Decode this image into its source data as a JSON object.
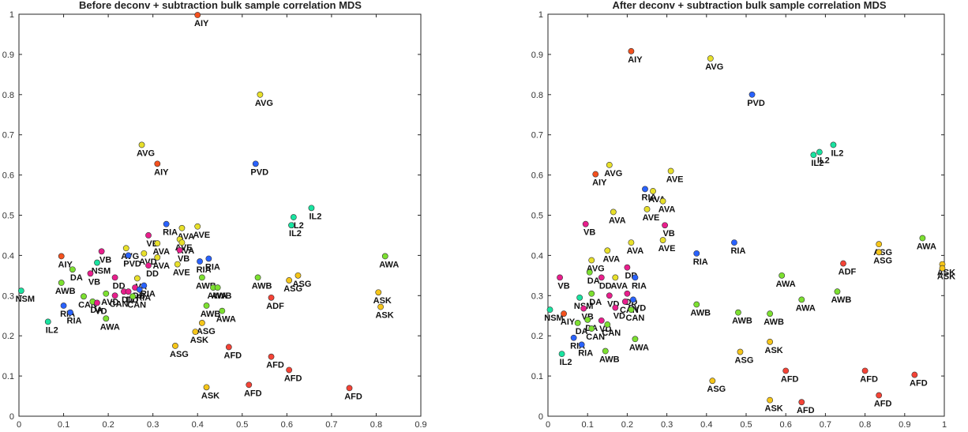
{
  "chart_data": [
    {
      "type": "scatter",
      "title": "Before deconv + subtraction bulk sample correlation MDS",
      "xlabel": "",
      "ylabel": "",
      "xlim": [
        0,
        0.9
      ],
      "ylim": [
        0,
        1
      ],
      "xticks": [
        "0",
        "0.1",
        "0.2",
        "0.3",
        "0.4",
        "0.5",
        "0.6",
        "0.7",
        "0.8",
        "0.9"
      ],
      "yticks": [
        "0",
        "0.1",
        "0.2",
        "0.3",
        "0.4",
        "0.5",
        "0.6",
        "0.7",
        "0.8",
        "0.9",
        "1"
      ],
      "grid": false,
      "points": [
        {
          "x": 0.4,
          "y": 0.998,
          "label": "AIY",
          "color": "#f4511e"
        },
        {
          "x": 0.54,
          "y": 0.8,
          "label": "AVG",
          "color": "#e8e02a"
        },
        {
          "x": 0.275,
          "y": 0.675,
          "label": "AVG",
          "color": "#e8e02a"
        },
        {
          "x": 0.31,
          "y": 0.628,
          "label": "AIY",
          "color": "#f4511e"
        },
        {
          "x": 0.53,
          "y": 0.628,
          "label": "PVD",
          "color": "#2962ff"
        },
        {
          "x": 0.655,
          "y": 0.518,
          "label": "IL2",
          "color": "#19e3a0"
        },
        {
          "x": 0.615,
          "y": 0.495,
          "label": "IL2",
          "color": "#19e3a0"
        },
        {
          "x": 0.61,
          "y": 0.475,
          "label": "IL2",
          "color": "#19e3a0"
        },
        {
          "x": 0.33,
          "y": 0.478,
          "label": "RIA",
          "color": "#2962ff"
        },
        {
          "x": 0.365,
          "y": 0.468,
          "label": "AVA",
          "color": "#e8e02a"
        },
        {
          "x": 0.4,
          "y": 0.472,
          "label": "AVE",
          "color": "#e8e02a"
        },
        {
          "x": 0.29,
          "y": 0.45,
          "label": "VB",
          "color": "#e91e8c"
        },
        {
          "x": 0.36,
          "y": 0.44,
          "label": "AVE",
          "color": "#e8e02a"
        },
        {
          "x": 0.365,
          "y": 0.432,
          "label": "AVA",
          "color": "#e8e02a"
        },
        {
          "x": 0.31,
          "y": 0.43,
          "label": "AVA",
          "color": "#e8e02a"
        },
        {
          "x": 0.36,
          "y": 0.413,
          "label": "VB",
          "color": "#e91e8c"
        },
        {
          "x": 0.24,
          "y": 0.418,
          "label": "AVG",
          "color": "#e8e02a"
        },
        {
          "x": 0.185,
          "y": 0.41,
          "label": "VB",
          "color": "#e91e8c"
        },
        {
          "x": 0.245,
          "y": 0.4,
          "label": "PVD",
          "color": "#2962ff"
        },
        {
          "x": 0.28,
          "y": 0.405,
          "label": "AVD",
          "color": "#e8e02a"
        },
        {
          "x": 0.31,
          "y": 0.395,
          "label": "AVA",
          "color": "#e8e02a"
        },
        {
          "x": 0.425,
          "y": 0.392,
          "label": "RIA",
          "color": "#2962ff"
        },
        {
          "x": 0.405,
          "y": 0.385,
          "label": "RIA",
          "color": "#2962ff"
        },
        {
          "x": 0.355,
          "y": 0.378,
          "label": "AVE",
          "color": "#e8e02a"
        },
        {
          "x": 0.29,
          "y": 0.375,
          "label": "DD",
          "color": "#e91e8c"
        },
        {
          "x": 0.095,
          "y": 0.398,
          "label": "AIY",
          "color": "#f4511e"
        },
        {
          "x": 0.175,
          "y": 0.382,
          "label": "NSM",
          "color": "#19e3a0"
        },
        {
          "x": 0.12,
          "y": 0.365,
          "label": "DA",
          "color": "#7ce030"
        },
        {
          "x": 0.16,
          "y": 0.355,
          "label": "VB",
          "color": "#e91e8c"
        },
        {
          "x": 0.215,
          "y": 0.345,
          "label": "DD",
          "color": "#e91e8c"
        },
        {
          "x": 0.265,
          "y": 0.343,
          "label": "VA",
          "color": "#e8e02a"
        },
        {
          "x": 0.095,
          "y": 0.332,
          "label": "AWB",
          "color": "#7ce030"
        },
        {
          "x": 0.005,
          "y": 0.312,
          "label": "NSM",
          "color": "#19e3a0"
        },
        {
          "x": 0.145,
          "y": 0.298,
          "label": "CAN",
          "color": "#7ce030"
        },
        {
          "x": 0.195,
          "y": 0.305,
          "label": "AVD",
          "color": "#7ce030"
        },
        {
          "x": 0.215,
          "y": 0.3,
          "label": "CAN",
          "color": "#e91e8c"
        },
        {
          "x": 0.235,
          "y": 0.31,
          "label": "DD",
          "color": "#e91e8c"
        },
        {
          "x": 0.245,
          "y": 0.31,
          "label": "DD",
          "color": "#e91e8c"
        },
        {
          "x": 0.26,
          "y": 0.32,
          "label": "DB",
          "color": "#e91e8c"
        },
        {
          "x": 0.27,
          "y": 0.315,
          "label": "RIA",
          "color": "#2962ff"
        },
        {
          "x": 0.28,
          "y": 0.325,
          "label": "RIA",
          "color": "#2962ff"
        },
        {
          "x": 0.255,
          "y": 0.298,
          "label": "CAN",
          "color": "#7ce030"
        },
        {
          "x": 0.165,
          "y": 0.285,
          "label": "DA",
          "color": "#7ce030"
        },
        {
          "x": 0.175,
          "y": 0.282,
          "label": "VD",
          "color": "#e91e8c"
        },
        {
          "x": 0.1,
          "y": 0.275,
          "label": "RIA",
          "color": "#2962ff"
        },
        {
          "x": 0.115,
          "y": 0.258,
          "label": "RIA",
          "color": "#2962ff"
        },
        {
          "x": 0.195,
          "y": 0.243,
          "label": "AWA",
          "color": "#7ce030"
        },
        {
          "x": 0.065,
          "y": 0.235,
          "label": "IL2",
          "color": "#19e3a0"
        },
        {
          "x": 0.41,
          "y": 0.345,
          "label": "AWB",
          "color": "#7ce030"
        },
        {
          "x": 0.435,
          "y": 0.32,
          "label": "AWA",
          "color": "#7ce030"
        },
        {
          "x": 0.445,
          "y": 0.32,
          "label": "AWB",
          "color": "#7ce030"
        },
        {
          "x": 0.535,
          "y": 0.345,
          "label": "AWB",
          "color": "#7ce030"
        },
        {
          "x": 0.625,
          "y": 0.35,
          "label": "ASG",
          "color": "#f5c518"
        },
        {
          "x": 0.605,
          "y": 0.338,
          "label": "ASG",
          "color": "#f5c518"
        },
        {
          "x": 0.565,
          "y": 0.295,
          "label": "ADF",
          "color": "#f44336"
        },
        {
          "x": 0.42,
          "y": 0.275,
          "label": "AWB",
          "color": "#7ce030"
        },
        {
          "x": 0.455,
          "y": 0.262,
          "label": "AWA",
          "color": "#7ce030"
        },
        {
          "x": 0.41,
          "y": 0.232,
          "label": "ASG",
          "color": "#f5c518"
        },
        {
          "x": 0.395,
          "y": 0.21,
          "label": "ASK",
          "color": "#f5c518"
        },
        {
          "x": 0.35,
          "y": 0.175,
          "label": "ASG",
          "color": "#f5c518"
        },
        {
          "x": 0.47,
          "y": 0.172,
          "label": "AFD",
          "color": "#f44336"
        },
        {
          "x": 0.565,
          "y": 0.148,
          "label": "AFD",
          "color": "#f44336"
        },
        {
          "x": 0.605,
          "y": 0.115,
          "label": "AFD",
          "color": "#f44336"
        },
        {
          "x": 0.515,
          "y": 0.078,
          "label": "AFD",
          "color": "#f44336"
        },
        {
          "x": 0.42,
          "y": 0.072,
          "label": "ASK",
          "color": "#f5c518"
        },
        {
          "x": 0.74,
          "y": 0.07,
          "label": "AFD",
          "color": "#f44336"
        },
        {
          "x": 0.82,
          "y": 0.398,
          "label": "AWA",
          "color": "#7ce030"
        },
        {
          "x": 0.805,
          "y": 0.308,
          "label": "ASK",
          "color": "#f5c518"
        },
        {
          "x": 0.81,
          "y": 0.272,
          "label": "ASK",
          "color": "#f5c518"
        }
      ]
    },
    {
      "type": "scatter",
      "title": "After deconv + subtraction bulk sample correlation MDS",
      "xlabel": "",
      "ylabel": "",
      "xlim": [
        0,
        1
      ],
      "ylim": [
        0,
        1
      ],
      "xticks": [
        "0",
        "0.1",
        "0.2",
        "0.3",
        "0.4",
        "0.5",
        "0.6",
        "0.7",
        "0.8",
        "0.9",
        "1"
      ],
      "yticks": [
        "0",
        "0.1",
        "0.2",
        "0.3",
        "0.4",
        "0.5",
        "0.6",
        "0.7",
        "0.8",
        "0.9",
        "1"
      ],
      "grid": false,
      "points": [
        {
          "x": 0.21,
          "y": 0.908,
          "label": "AIY",
          "color": "#f4511e"
        },
        {
          "x": 0.41,
          "y": 0.89,
          "label": "AVG",
          "color": "#e8e02a"
        },
        {
          "x": 0.515,
          "y": 0.8,
          "label": "PVD",
          "color": "#2962ff"
        },
        {
          "x": 0.72,
          "y": 0.675,
          "label": "IL2",
          "color": "#19e3a0"
        },
        {
          "x": 0.685,
          "y": 0.657,
          "label": "IL2",
          "color": "#19e3a0"
        },
        {
          "x": 0.67,
          "y": 0.65,
          "label": "IL2",
          "color": "#19e3a0"
        },
        {
          "x": 0.155,
          "y": 0.625,
          "label": "AVG",
          "color": "#e8e02a"
        },
        {
          "x": 0.12,
          "y": 0.602,
          "label": "AIY",
          "color": "#f4511e"
        },
        {
          "x": 0.31,
          "y": 0.61,
          "label": "AVE",
          "color": "#e8e02a"
        },
        {
          "x": 0.245,
          "y": 0.565,
          "label": "RIA",
          "color": "#2962ff"
        },
        {
          "x": 0.265,
          "y": 0.56,
          "label": "AVA",
          "color": "#e8e02a"
        },
        {
          "x": 0.29,
          "y": 0.535,
          "label": "AVA",
          "color": "#e8e02a"
        },
        {
          "x": 0.165,
          "y": 0.508,
          "label": "AVA",
          "color": "#e8e02a"
        },
        {
          "x": 0.25,
          "y": 0.515,
          "label": "AVE",
          "color": "#e8e02a"
        },
        {
          "x": 0.095,
          "y": 0.478,
          "label": "VB",
          "color": "#e91e8c"
        },
        {
          "x": 0.295,
          "y": 0.475,
          "label": "VB",
          "color": "#e91e8c"
        },
        {
          "x": 0.945,
          "y": 0.443,
          "label": "AWA",
          "color": "#7ce030"
        },
        {
          "x": 0.29,
          "y": 0.438,
          "label": "AVE",
          "color": "#e8e02a"
        },
        {
          "x": 0.21,
          "y": 0.432,
          "label": "AVA",
          "color": "#e8e02a"
        },
        {
          "x": 0.47,
          "y": 0.432,
          "label": "RIA",
          "color": "#2962ff"
        },
        {
          "x": 0.835,
          "y": 0.428,
          "label": "ASG",
          "color": "#f5c518"
        },
        {
          "x": 0.835,
          "y": 0.408,
          "label": "ASG",
          "color": "#f5c518"
        },
        {
          "x": 0.15,
          "y": 0.412,
          "label": "AVA",
          "color": "#e8e02a"
        },
        {
          "x": 0.375,
          "y": 0.405,
          "label": "RIA",
          "color": "#2962ff"
        },
        {
          "x": 0.11,
          "y": 0.388,
          "label": "AVG",
          "color": "#e8e02a"
        },
        {
          "x": 0.745,
          "y": 0.38,
          "label": "ADF",
          "color": "#f44336"
        },
        {
          "x": 0.995,
          "y": 0.378,
          "label": "ASK",
          "color": "#f5c518"
        },
        {
          "x": 0.995,
          "y": 0.368,
          "label": "ASK",
          "color": "#f5c518"
        },
        {
          "x": 0.2,
          "y": 0.37,
          "label": "DD",
          "color": "#e91e8c"
        },
        {
          "x": 0.105,
          "y": 0.358,
          "label": "DA",
          "color": "#7ce030"
        },
        {
          "x": 0.135,
          "y": 0.345,
          "label": "DD",
          "color": "#e91e8c"
        },
        {
          "x": 0.17,
          "y": 0.345,
          "label": "AVA",
          "color": "#e8e02a"
        },
        {
          "x": 0.22,
          "y": 0.345,
          "label": "RIA",
          "color": "#2962ff"
        },
        {
          "x": 0.59,
          "y": 0.35,
          "label": "AWA",
          "color": "#7ce030"
        },
        {
          "x": 0.03,
          "y": 0.345,
          "label": "VB",
          "color": "#e91e8c"
        },
        {
          "x": 0.73,
          "y": 0.31,
          "label": "AWB",
          "color": "#7ce030"
        },
        {
          "x": 0.11,
          "y": 0.305,
          "label": "DA",
          "color": "#7ce030"
        },
        {
          "x": 0.155,
          "y": 0.3,
          "label": "VD",
          "color": "#e91e8c"
        },
        {
          "x": 0.2,
          "y": 0.305,
          "label": "DD",
          "color": "#e91e8c"
        },
        {
          "x": 0.215,
          "y": 0.29,
          "label": "PVD",
          "color": "#2962ff"
        },
        {
          "x": 0.08,
          "y": 0.295,
          "label": "NSM",
          "color": "#19e3a0"
        },
        {
          "x": 0.64,
          "y": 0.29,
          "label": "AWA",
          "color": "#7ce030"
        },
        {
          "x": 0.375,
          "y": 0.278,
          "label": "AWB",
          "color": "#7ce030"
        },
        {
          "x": 0.195,
          "y": 0.285,
          "label": "CAN",
          "color": "#e91e8c"
        },
        {
          "x": 0.21,
          "y": 0.265,
          "label": "CAN",
          "color": "#7ce030"
        },
        {
          "x": 0.005,
          "y": 0.265,
          "label": "NSM",
          "color": "#19e3a0"
        },
        {
          "x": 0.04,
          "y": 0.255,
          "label": "AIY",
          "color": "#f4511e"
        },
        {
          "x": 0.09,
          "y": 0.268,
          "label": "VB",
          "color": "#e91e8c"
        },
        {
          "x": 0.17,
          "y": 0.27,
          "label": "VD",
          "color": "#e91e8c"
        },
        {
          "x": 0.48,
          "y": 0.258,
          "label": "AWB",
          "color": "#7ce030"
        },
        {
          "x": 0.56,
          "y": 0.255,
          "label": "AWB",
          "color": "#7ce030"
        },
        {
          "x": 0.1,
          "y": 0.24,
          "label": "DA",
          "color": "#7ce030"
        },
        {
          "x": 0.075,
          "y": 0.232,
          "label": "DA",
          "color": "#7ce030"
        },
        {
          "x": 0.135,
          "y": 0.238,
          "label": "VD",
          "color": "#e91e8c"
        },
        {
          "x": 0.15,
          "y": 0.228,
          "label": "CAN",
          "color": "#7ce030"
        },
        {
          "x": 0.11,
          "y": 0.218,
          "label": "CAN",
          "color": "#7ce030"
        },
        {
          "x": 0.22,
          "y": 0.192,
          "label": "AWA",
          "color": "#7ce030"
        },
        {
          "x": 0.065,
          "y": 0.195,
          "label": "RIA",
          "color": "#2962ff"
        },
        {
          "x": 0.085,
          "y": 0.178,
          "label": "RIA",
          "color": "#2962ff"
        },
        {
          "x": 0.56,
          "y": 0.185,
          "label": "ASK",
          "color": "#f5c518"
        },
        {
          "x": 0.145,
          "y": 0.162,
          "label": "AWB",
          "color": "#7ce030"
        },
        {
          "x": 0.035,
          "y": 0.155,
          "label": "IL2",
          "color": "#19e3a0"
        },
        {
          "x": 0.485,
          "y": 0.16,
          "label": "ASG",
          "color": "#f5c518"
        },
        {
          "x": 0.6,
          "y": 0.113,
          "label": "AFD",
          "color": "#f44336"
        },
        {
          "x": 0.8,
          "y": 0.113,
          "label": "AFD",
          "color": "#f44336"
        },
        {
          "x": 0.925,
          "y": 0.103,
          "label": "AFD",
          "color": "#f44336"
        },
        {
          "x": 0.415,
          "y": 0.088,
          "label": "ASG",
          "color": "#f5c518"
        },
        {
          "x": 0.835,
          "y": 0.052,
          "label": "AFD",
          "color": "#f44336"
        },
        {
          "x": 0.56,
          "y": 0.04,
          "label": "ASK",
          "color": "#f5c518"
        },
        {
          "x": 0.64,
          "y": 0.035,
          "label": "AFD",
          "color": "#f44336"
        }
      ]
    }
  ]
}
